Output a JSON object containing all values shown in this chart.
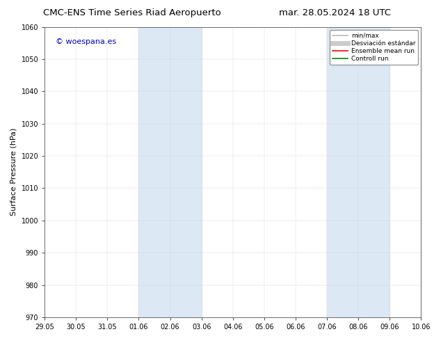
{
  "title_left": "CMC-ENS Time Series Riad Aeropuerto",
  "title_right": "mar. 28.05.2024 18 UTC",
  "ylabel": "Surface Pressure (hPa)",
  "ylim": [
    970,
    1060
  ],
  "yticks": [
    970,
    980,
    990,
    1000,
    1010,
    1020,
    1030,
    1040,
    1050,
    1060
  ],
  "xtick_labels": [
    "29.05",
    "30.05",
    "31.05",
    "01.06",
    "02.06",
    "03.06",
    "04.06",
    "05.06",
    "06.06",
    "07.06",
    "08.06",
    "09.06",
    "10.06"
  ],
  "xtick_positions": [
    0,
    1,
    2,
    3,
    4,
    5,
    6,
    7,
    8,
    9,
    10,
    11,
    12
  ],
  "xlim": [
    0,
    12
  ],
  "background_color": "#ffffff",
  "plot_bg_color": "#ffffff",
  "shaded_regions": [
    {
      "xstart": 3,
      "xend": 5,
      "color": "#dce9f5"
    },
    {
      "xstart": 9,
      "xend": 11,
      "color": "#dce9f5"
    }
  ],
  "watermark_text": "© woespana.es",
  "watermark_color": "#0000cc",
  "legend_entries": [
    {
      "label": "min/max",
      "color": "#bbbbbb",
      "lw": 1.2,
      "style": "-"
    },
    {
      "label": "Desviación estándar",
      "color": "#cccccc",
      "lw": 5,
      "style": "-"
    },
    {
      "label": "Ensemble mean run",
      "color": "#ff0000",
      "lw": 1.2,
      "style": "-"
    },
    {
      "label": "Controll run",
      "color": "#008800",
      "lw": 1.2,
      "style": "-"
    }
  ],
  "title_fontsize": 9.5,
  "axis_label_fontsize": 8,
  "tick_fontsize": 7,
  "watermark_fontsize": 8,
  "legend_fontsize": 6.5
}
